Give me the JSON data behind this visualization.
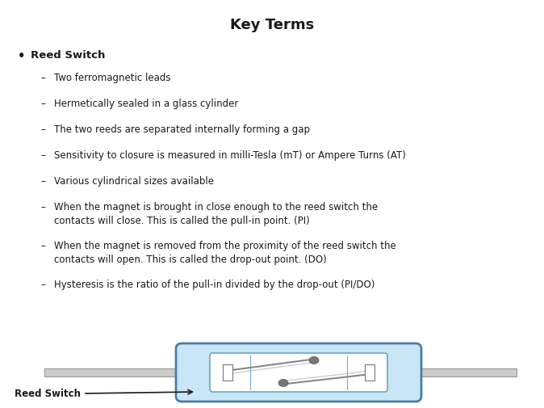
{
  "title": "Key Terms",
  "title_fontsize": 13,
  "title_fontweight": "bold",
  "bg_color": "#ffffff",
  "text_color": "#1a1a1a",
  "bullet_header": "Reed Switch",
  "sub_items": [
    "Two ferromagnetic leads",
    "Hermetically sealed in a glass cylinder",
    "The two reeds are separated internally forming a gap",
    "Sensitivity to closure is measured in milli-Tesla (mT) or Ampere Turns (AT)",
    "Various cylindrical sizes available",
    "When the magnet is brought in close enough to the reed switch the\ncontacts will close. This is called the pull-in point. (PI)",
    "When the magnet is removed from the proximity of the reed switch the\ncontacts will open. This is called the drop-out point. (DO)",
    "Hysteresis is the ratio of the pull-in divided by the drop-out (PI/DO)"
  ],
  "font_family": "DejaVu Sans",
  "body_fontsize": 8.5,
  "header_fontsize": 9.5,
  "diagram_label": "Reed Switch",
  "glass_color": "#c8e6f5",
  "glass_border": "#4a7fa0",
  "inner_border": "#5599bb",
  "wire_color": "#888888",
  "reed_color": "#888888",
  "tip_color": "#777777"
}
